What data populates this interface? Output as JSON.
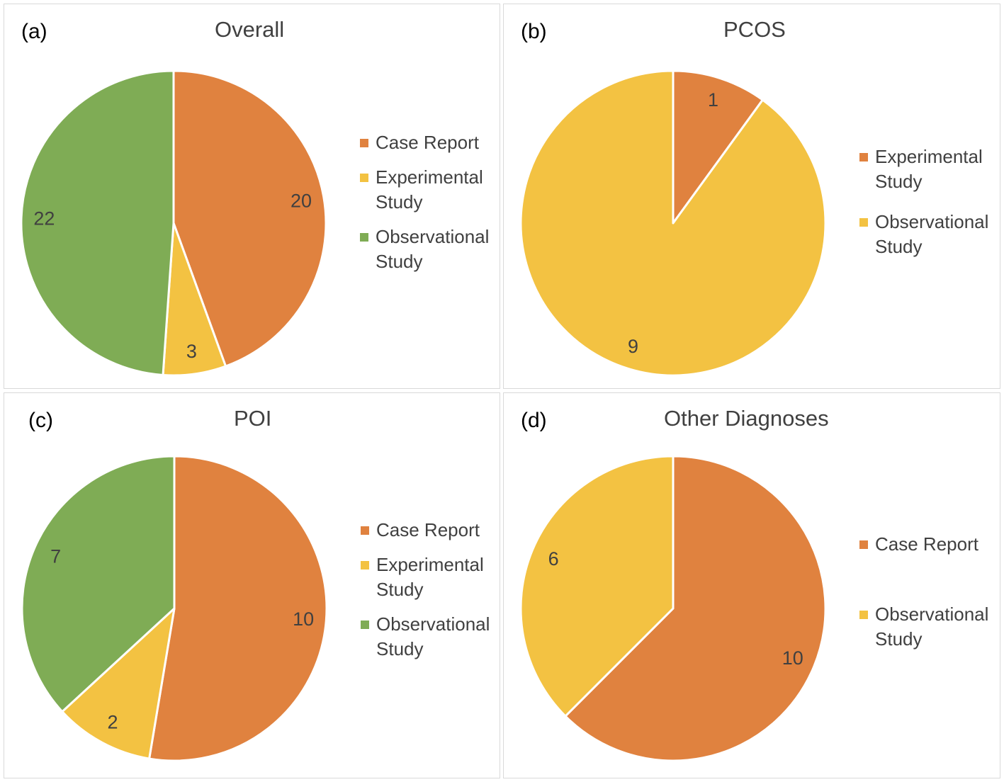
{
  "colors": {
    "case_report": "#e0823f",
    "experimental_study": "#f3c242",
    "observational_study": "#7fac55",
    "panel_border": "#d9d9d9",
    "slice_border": "#ffffff"
  },
  "chart_data": [
    {
      "type": "pie",
      "panel_label": "(a)",
      "title": "Overall",
      "legend": [
        "Case Report",
        "Experimental Study",
        "Observational Study"
      ],
      "slices": [
        {
          "label": "Case Report",
          "value": 20,
          "color": "#e0823f"
        },
        {
          "label": "Experimental Study",
          "value": 3,
          "color": "#f3c242"
        },
        {
          "label": "Observational Study",
          "value": 22,
          "color": "#7fac55"
        }
      ]
    },
    {
      "type": "pie",
      "panel_label": "(b)",
      "title": "PCOS",
      "legend": [
        "Experimental Study",
        "Observational Study"
      ],
      "slices": [
        {
          "label": "Experimental Study",
          "value": 1,
          "color": "#e0823f"
        },
        {
          "label": "Observational Study",
          "value": 9,
          "color": "#f3c242"
        }
      ]
    },
    {
      "type": "pie",
      "panel_label": "(c)",
      "title": "POI",
      "legend": [
        "Case Report",
        "Experimental Study",
        "Observational Study"
      ],
      "slices": [
        {
          "label": "Case Report",
          "value": 10,
          "color": "#e0823f"
        },
        {
          "label": "Experimental Study",
          "value": 2,
          "color": "#f3c242"
        },
        {
          "label": "Observational Study",
          "value": 7,
          "color": "#7fac55"
        }
      ]
    },
    {
      "type": "pie",
      "panel_label": "(d)",
      "title": "Other Diagnoses",
      "legend": [
        "Case Report",
        "Observational Study"
      ],
      "slices": [
        {
          "label": "Case Report",
          "value": 10,
          "color": "#e0823f"
        },
        {
          "label": "Observational Study",
          "value": 6,
          "color": "#f3c242"
        }
      ]
    }
  ]
}
